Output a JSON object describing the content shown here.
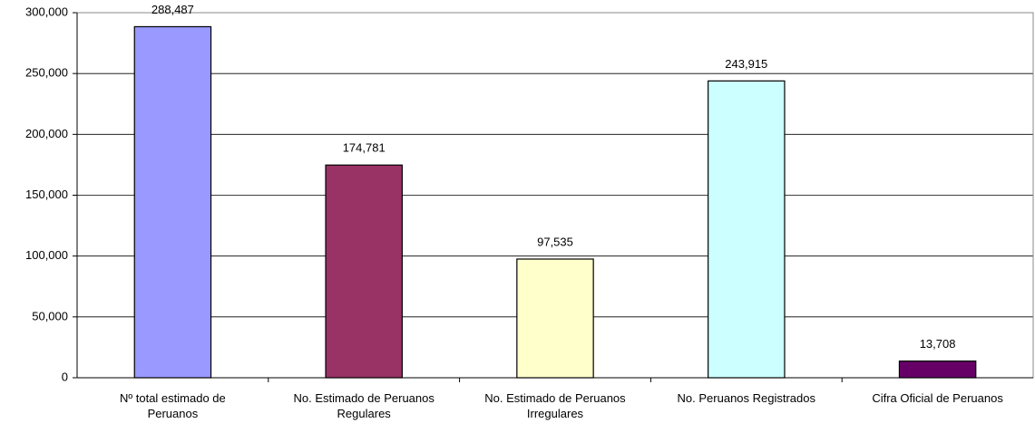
{
  "chart_data": {
    "type": "bar",
    "categories": [
      "Nº total estimado de Peruanos",
      "No. Estimado de Peruanos Regulares",
      "No. Estimado de Peruanos Irregulares",
      "No. Peruanos Registrados",
      "Cifra Oficial de Peruanos"
    ],
    "values": [
      288487,
      174781,
      97535,
      243915,
      13708
    ],
    "value_labels": [
      "288,487",
      "174,781",
      "97,535",
      "243,915",
      "13,708"
    ],
    "colors": [
      "#9999ff",
      "#993366",
      "#ffffcc",
      "#ccffff",
      "#660066"
    ],
    "ylim": [
      0,
      300000
    ],
    "yticks": [
      0,
      {
        "value": 50000,
        "label": "50,000"
      },
      {
        "value": 100000,
        "label": "100,000"
      },
      {
        "value": 150000,
        "label": "150,000"
      },
      {
        "value": 200000,
        "label": "200,000"
      },
      {
        "value": 250000,
        "label": "250,000"
      },
      {
        "value": 300000,
        "label": "300,000"
      }
    ],
    "grid": true
  }
}
